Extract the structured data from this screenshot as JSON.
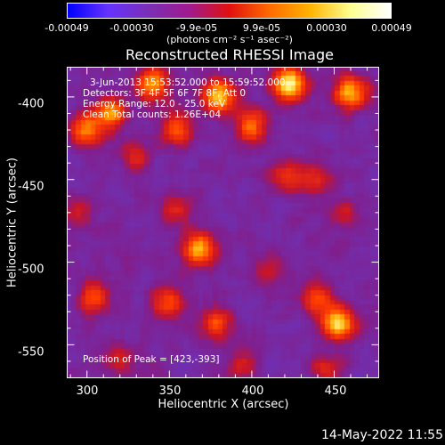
{
  "colorbar": {
    "ticks": [
      "-0.00049",
      "-0.00030",
      "-9.9e-05",
      "9.9e-05",
      "0.00030",
      "0.00049"
    ],
    "units": "(photons cm⁻² s⁻¹ asec⁻²)",
    "colors": [
      "#0000ff",
      "#6633ff",
      "#7a2fb5",
      "#a01a90",
      "#e01010",
      "#ff6a00",
      "#ffb300",
      "#ffff90",
      "#ffffff"
    ]
  },
  "chart_data": {
    "type": "heatmap",
    "title": "Reconstructed RHESSI Image",
    "xlabel": "Heliocentric X (arcsec)",
    "ylabel": "Heliocentric Y (arcsec)",
    "xlim": [
      288,
      477
    ],
    "ylim": [
      -570,
      -382
    ],
    "xticks": [
      "300",
      "350",
      "400",
      "450"
    ],
    "xtick_values": [
      300,
      350,
      400,
      450
    ],
    "yticks": [
      "-400",
      "-450",
      "-500",
      "-550"
    ],
    "ytick_values": [
      -400,
      -450,
      -500,
      -550
    ],
    "value_range": [
      -0.00049,
      0.00049
    ],
    "peak": [
      423,
      -393
    ],
    "annotations": [
      "3-Jun-2013 15:53:52.000 to 15:59:52.000",
      "Detectors: 3F 4F 5F 6F 7F 8F, Att 0",
      "Energy Range: 12.0 - 25.0 keV",
      "Clean    Total counts: 1.26E+04"
    ],
    "peak_label": "Position of Peak = [423,-393]",
    "sources": [
      {
        "x": 423,
        "y": -393,
        "value": 0.00049
      },
      {
        "x": 380,
        "y": -400,
        "value": 0.00042
      },
      {
        "x": 460,
        "y": -398,
        "value": 0.0004
      },
      {
        "x": 340,
        "y": -393,
        "value": 0.00036
      },
      {
        "x": 315,
        "y": -410,
        "value": 0.00033
      },
      {
        "x": 300,
        "y": -420,
        "value": 0.0003
      },
      {
        "x": 400,
        "y": -418,
        "value": 0.0003
      },
      {
        "x": 355,
        "y": -420,
        "value": 0.00025
      },
      {
        "x": 368,
        "y": -492,
        "value": 0.00038
      },
      {
        "x": 452,
        "y": -537,
        "value": 0.00042
      },
      {
        "x": 440,
        "y": -522,
        "value": 0.00026
      },
      {
        "x": 305,
        "y": -522,
        "value": 0.00025
      },
      {
        "x": 350,
        "y": -525,
        "value": 0.00024
      },
      {
        "x": 378,
        "y": -538,
        "value": 0.00024
      },
      {
        "x": 420,
        "y": -448,
        "value": 0.0002
      },
      {
        "x": 438,
        "y": -450,
        "value": 0.00018
      },
      {
        "x": 355,
        "y": -470,
        "value": 0.00018
      },
      {
        "x": 330,
        "y": -435,
        "value": 0.00016
      },
      {
        "x": 320,
        "y": -560,
        "value": 0.00016
      },
      {
        "x": 445,
        "y": -565,
        "value": 0.00016
      },
      {
        "x": 395,
        "y": -560,
        "value": 0.00014
      },
      {
        "x": 412,
        "y": -505,
        "value": 0.00014
      },
      {
        "x": 455,
        "y": -470,
        "value": 0.00012
      },
      {
        "x": 295,
        "y": -470,
        "value": 0.00012
      }
    ]
  },
  "timestamp": "14-May-2022 11:55"
}
